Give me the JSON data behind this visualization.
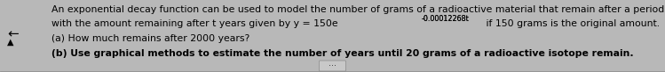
{
  "background_color": "#b8b8b8",
  "text_color": "#000000",
  "line1": "An exponential decay function can be used to model the number of grams of a radioactive material that remain after a period of time. A radioactive isotope decays over time,",
  "line2_prefix": "with the amount remaining after t years given by y = 150e",
  "line2_superscript": "-0.00012268t",
  "line2_suffix": " if 150 grams is the original amount.",
  "line3": "(a) How much remains after 2000 years?",
  "line4": "(b) Use graphical methods to estimate the number of years until 20 grams of a radioactive isotope remain.",
  "font_size": 7.8,
  "sup_font_size": 5.8,
  "fig_width": 7.49,
  "fig_height": 0.82,
  "dpi": 100
}
